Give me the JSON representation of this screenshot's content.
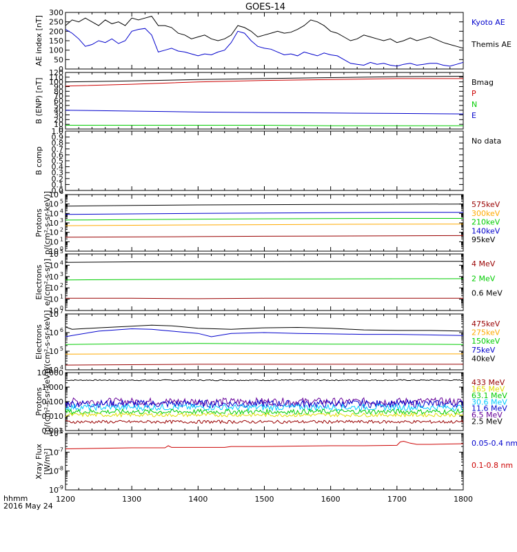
{
  "title": "GOES-14",
  "footer": {
    "line1": "hhmm",
    "line2": "2016 May 24"
  },
  "colors": {
    "black": "#000000",
    "red": "#cc0000",
    "blue": "#0000cc",
    "green": "#00cc00",
    "orange": "#ffaa00",
    "darkred": "#990000",
    "purple": "#660099",
    "cyan": "#00ccff",
    "yellow": "#dddd00",
    "brown": "#aa5500"
  },
  "chart_data": [
    {
      "type": "line",
      "panel": "ae_index",
      "ylabel": "AE index [nT]",
      "ylim": [
        0,
        300
      ],
      "yticks": [
        "0",
        "50",
        "100",
        "150",
        "200",
        "250",
        "300"
      ],
      "xlim": [
        1200,
        1800
      ],
      "xticks": [
        "1200",
        "1300",
        "1400",
        "1500",
        "1600",
        "1700",
        "1800"
      ],
      "series": [
        {
          "name": "Kyoto AE",
          "color": "blue",
          "x": [
            1200,
            1210,
            1220,
            1230,
            1240,
            1250,
            1260,
            1270,
            1280,
            1290,
            1300,
            1310,
            1320,
            1330,
            1340,
            1350,
            1360,
            1370,
            1380,
            1390,
            1400,
            1410,
            1420,
            1430,
            1440,
            1450,
            1460,
            1470,
            1480,
            1490,
            1500,
            1510,
            1520,
            1530,
            1540,
            1550,
            1560,
            1570,
            1580,
            1590,
            1600,
            1610,
            1620,
            1630,
            1640,
            1650,
            1660,
            1670,
            1680,
            1690,
            1700,
            1710,
            1720,
            1730,
            1740,
            1750,
            1760,
            1770,
            1780,
            1790,
            1800
          ],
          "y": [
            210,
            190,
            160,
            120,
            130,
            150,
            140,
            160,
            135,
            150,
            200,
            210,
            215,
            180,
            90,
            100,
            110,
            95,
            90,
            80,
            70,
            80,
            75,
            90,
            100,
            140,
            200,
            190,
            150,
            120,
            110,
            105,
            90,
            75,
            80,
            70,
            90,
            80,
            70,
            85,
            75,
            70,
            50,
            30,
            25,
            20,
            35,
            25,
            30,
            20,
            15,
            25,
            30,
            20,
            25,
            30,
            30,
            20,
            15,
            25,
            35
          ]
        },
        {
          "name": "Themis AE",
          "color": "black",
          "x": [
            1200,
            1210,
            1220,
            1230,
            1240,
            1250,
            1260,
            1270,
            1280,
            1290,
            1300,
            1310,
            1320,
            1330,
            1340,
            1350,
            1360,
            1370,
            1380,
            1390,
            1400,
            1410,
            1420,
            1430,
            1440,
            1450,
            1460,
            1470,
            1480,
            1490,
            1500,
            1510,
            1520,
            1530,
            1540,
            1550,
            1560,
            1570,
            1580,
            1590,
            1600,
            1610,
            1620,
            1630,
            1640,
            1650,
            1660,
            1670,
            1680,
            1690,
            1700,
            1710,
            1720,
            1730,
            1740,
            1750,
            1760,
            1770,
            1780,
            1790,
            1800
          ],
          "y": [
            230,
            260,
            250,
            270,
            250,
            230,
            260,
            240,
            250,
            230,
            270,
            260,
            270,
            280,
            230,
            230,
            220,
            190,
            180,
            160,
            170,
            180,
            160,
            150,
            160,
            180,
            230,
            220,
            200,
            170,
            180,
            190,
            200,
            190,
            195,
            210,
            230,
            260,
            250,
            230,
            200,
            190,
            170,
            150,
            160,
            180,
            170,
            160,
            150,
            160,
            140,
            150,
            165,
            150,
            160,
            170,
            155,
            140,
            130,
            120,
            110
          ]
        }
      ]
    },
    {
      "type": "line",
      "panel": "b_enp",
      "ylabel": "B (ENP) [nT]",
      "ylim": [
        0,
        120
      ],
      "yticks": [
        "0",
        "10",
        "20",
        "30",
        "40",
        "50",
        "60",
        "70",
        "80",
        "90",
        "100",
        "110",
        "120"
      ],
      "xlim": [
        1200,
        1800
      ],
      "series": [
        {
          "name": "Bmag",
          "color": "black",
          "x": [
            1200,
            1300,
            1400,
            1500,
            1600,
            1700,
            1800
          ],
          "y": [
            100,
            102,
            105,
            107,
            109,
            111,
            112
          ]
        },
        {
          "name": "P",
          "color": "red",
          "x": [
            1200,
            1300,
            1400,
            1500,
            1600,
            1700,
            1800
          ],
          "y": [
            91,
            95,
            100,
            103,
            105,
            107,
            107
          ]
        },
        {
          "name": "N",
          "color": "green",
          "x": [
            1200,
            1300,
            1400,
            1500,
            1600,
            1700,
            1800
          ],
          "y": [
            8,
            8,
            8,
            8,
            7,
            7,
            7
          ]
        },
        {
          "name": "E",
          "color": "blue",
          "x": [
            1200,
            1300,
            1400,
            1500,
            1600,
            1700,
            1800
          ],
          "y": [
            40,
            38,
            36,
            35,
            34,
            33,
            32
          ]
        }
      ]
    },
    {
      "type": "line",
      "panel": "b_comp",
      "ylabel": "B comp",
      "ylim": [
        0,
        1
      ],
      "yticks": [
        "0.0",
        "0.1",
        "0.2",
        "0.3",
        "0.4",
        "0.5",
        "0.6",
        "0.7",
        "0.8",
        "0.9",
        "1.0"
      ],
      "xlim": [
        1200,
        1800
      ],
      "series": [],
      "legend": [
        {
          "name": "No data",
          "color": "black"
        }
      ]
    },
    {
      "type": "line",
      "panel": "protons_low",
      "ylabel": "Protons",
      "ylabel2": "p/(cm²-s-sr-keV)]",
      "log": true,
      "ylim_exp": [
        0,
        6
      ],
      "xlim": [
        1200,
        1800
      ],
      "series": [
        {
          "name": "95keV",
          "color": "black",
          "x": [
            1200,
            1300,
            1400,
            1500,
            1600,
            1700,
            1800
          ],
          "y": [
            60000,
            70000,
            80000,
            85000,
            90000,
            95000,
            100000
          ]
        },
        {
          "name": "140keV",
          "color": "blue",
          "x": [
            1200,
            1300,
            1400,
            1500,
            1600,
            1700,
            1800
          ],
          "y": [
            8000,
            9000,
            10000,
            11000,
            12000,
            13000,
            13000
          ]
        },
        {
          "name": "210keV",
          "color": "green",
          "x": [
            1200,
            1300,
            1400,
            1500,
            1600,
            1700,
            1800
          ],
          "y": [
            2000,
            2200,
            2500,
            2700,
            2900,
            3000,
            3000
          ]
        },
        {
          "name": "300keV",
          "color": "orange",
          "x": [
            1200,
            1300,
            1400,
            1500,
            1600,
            1700,
            1800
          ],
          "y": [
            500,
            550,
            600,
            650,
            700,
            720,
            750
          ]
        },
        {
          "name": "575keV",
          "color": "darkred",
          "x": [
            1200,
            1300,
            1400,
            1500,
            1600,
            1700,
            1800
          ],
          "y": [
            30,
            32,
            35,
            38,
            40,
            42,
            45
          ]
        }
      ]
    },
    {
      "type": "line",
      "panel": "electrons_high",
      "ylabel": "Electrons",
      "ylabel2": "e/(cm²-s-sr)]",
      "log": true,
      "ylim_exp": [
        0,
        5
      ],
      "xlim": [
        1200,
        1800
      ],
      "series": [
        {
          "name": "0.6 MeV",
          "color": "black",
          "x": [
            1200,
            1300,
            1400,
            1500,
            1600,
            1700,
            1800
          ],
          "y": [
            18000,
            20000,
            21000,
            21000,
            22000,
            22000,
            22000
          ]
        },
        {
          "name": "2 MeV",
          "color": "green",
          "x": [
            1200,
            1300,
            1400,
            1500,
            1600,
            1700,
            1800
          ],
          "y": [
            500,
            550,
            580,
            600,
            620,
            640,
            650
          ]
        },
        {
          "name": "4 MeV",
          "color": "darkred",
          "x": [
            1200,
            1300,
            1400,
            1500,
            1600,
            1700,
            1800
          ],
          "y": [
            12,
            12,
            11,
            12,
            12,
            12,
            12
          ]
        }
      ]
    },
    {
      "type": "line",
      "panel": "electrons_low",
      "ylabel": "Electrons",
      "ylabel2": "e/(cm²-s-sr-keV)]",
      "log": true,
      "ylim_exp": [
        4,
        7
      ],
      "xlim": [
        1200,
        1800
      ],
      "series": [
        {
          "name": "40keV",
          "color": "black",
          "x": [
            1200,
            1210,
            1250,
            1300,
            1330,
            1360,
            1400,
            1450,
            1500,
            1550,
            1600,
            1650,
            1700,
            1750,
            1800
          ],
          "y": [
            2000000,
            1500000,
            1800000,
            2200000,
            2500000,
            2300000,
            1700000,
            1500000,
            1800000,
            1900000,
            1700000,
            1400000,
            1300000,
            1300000,
            1200000
          ]
        },
        {
          "name": "75keV",
          "color": "blue",
          "x": [
            1200,
            1210,
            1250,
            1300,
            1330,
            1360,
            1400,
            1420,
            1450,
            1500,
            1550,
            1600,
            1650,
            1700,
            1750,
            1800
          ],
          "y": [
            600000,
            700000,
            1200000,
            1600000,
            1500000,
            1200000,
            900000,
            600000,
            900000,
            1000000,
            900000,
            850000,
            800000,
            800000,
            750000,
            700000
          ]
        },
        {
          "name": "150keV",
          "color": "green",
          "x": [
            1200,
            1300,
            1400,
            1500,
            1600,
            1700,
            1800
          ],
          "y": [
            230000,
            250000,
            260000,
            250000,
            240000,
            240000,
            230000
          ]
        },
        {
          "name": "275keV",
          "color": "orange",
          "x": [
            1200,
            1300,
            1400,
            1500,
            1600,
            1700,
            1800
          ],
          "y": [
            70000,
            72000,
            75000,
            74000,
            73000,
            72000,
            72000
          ]
        },
        {
          "name": "475keV",
          "color": "darkred",
          "x": [
            1200,
            1300,
            1400,
            1500,
            1600,
            1700,
            1800
          ],
          "y": [
            18000,
            19000,
            20000,
            20000,
            20000,
            20000,
            20000
          ]
        }
      ]
    },
    {
      "type": "line",
      "panel": "protons_high",
      "ylabel": "Protons",
      "ylabel2": "[p/(cm²-s-sr-keV)]",
      "log": true,
      "ylim_exp": [
        -3,
        1
      ],
      "yticks": [
        "0.001",
        "0.010",
        "0.100",
        "1.000",
        "10.000"
      ],
      "xlim": [
        1200,
        1800
      ],
      "series": [
        {
          "name": "2.5 MeV",
          "color": "black",
          "base": 3.0,
          "noise": 0.08
        },
        {
          "name": "6.5 MeV",
          "color": "purple",
          "base": 0.1,
          "noise": 0.6
        },
        {
          "name": "11.6 MeV",
          "color": "blue",
          "base": 0.07,
          "noise": 0.6
        },
        {
          "name": "30.6 MeV",
          "color": "cyan",
          "base": 0.04,
          "noise": 0.5
        },
        {
          "name": "63.1 MeV",
          "color": "green",
          "base": 0.02,
          "noise": 0.4
        },
        {
          "name": "165 MeV",
          "color": "yellow",
          "base": 0.012,
          "noise": 0.3
        },
        {
          "name": "433 MeV",
          "color": "darkred",
          "base": 0.004,
          "noise": 0.25
        }
      ]
    },
    {
      "type": "line",
      "panel": "xray",
      "ylabel": "Xray Flux",
      "ylabel2": "[W/m²]",
      "log": true,
      "ylim_exp": [
        -9,
        -6
      ],
      "xlim": [
        1200,
        1800
      ],
      "series": [
        {
          "name": "0.1-0.8 nm",
          "color": "red",
          "x": [
            1200,
            1250,
            1300,
            1350,
            1355,
            1360,
            1400,
            1440,
            1450,
            1500,
            1550,
            1600,
            1650,
            1700,
            1705,
            1710,
            1720,
            1730,
            1750,
            1800
          ],
          "y": [
            1.5e-07,
            1.6e-07,
            1.7e-07,
            1.7e-07,
            2.2e-07,
            1.8e-07,
            1.8e-07,
            1.8e-07,
            2e-07,
            2e-07,
            2.1e-07,
            2.2e-07,
            2.2e-07,
            2.3e-07,
            3.5e-07,
            3.8e-07,
            3e-07,
            2.6e-07,
            2.6e-07,
            2.8e-07
          ]
        },
        {
          "name": "0.05-0.4 nm",
          "color": "blue",
          "x": [],
          "y": []
        }
      ]
    }
  ]
}
